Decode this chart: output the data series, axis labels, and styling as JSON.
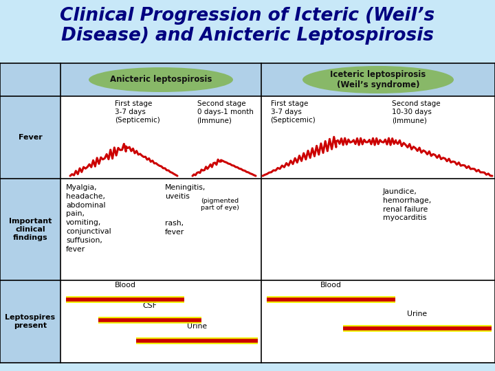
{
  "title_line1": "Clinical Progression of Icteric (Weil’s",
  "title_line2": "Disease) and Anicteric Leptospirosis",
  "title_color": "#000080",
  "title_fontsize": 19,
  "bg_color": "#c8e8f8",
  "white_bg": "#ffffff",
  "left_col_bg": "#b0d0e8",
  "header_bg": "#b0d0e8",
  "header_anicteric_bg": "#88b868",
  "header_icteric_bg": "#88b868",
  "anicteric_header": "Anicteric leptospirosis",
  "icteric_header": "Iceteric leptospirosis\n(Weil’s syndrome)",
  "fever_anicteric_s1": "First stage\n3-7 days\n(Septicemic)",
  "fever_anicteric_s2": "Second stage\n0 days-1 month\n(Immune)",
  "fever_icteric_s1": "First stage\n3-7 days\n(Septicemic)",
  "fever_icteric_s2": "Second stage\n10-30 days\n(Immune)",
  "row_labels": [
    "Fever",
    "Important\nclinical\nfindings",
    "Leptospires\npresent"
  ],
  "findings_anic_col1": "Myalgia,\nheadache,\nabdominal\npain,\nvomiting,\nconjunctival\nsuffusion,\nfever",
  "findings_anic_col2": "Meningitis,\nuveitis",
  "findings_anic_annotation": "(pigmented\npart of eye)",
  "findings_anic_col2b": "rash,\nfever",
  "findings_ic": "Jaundice,\nhemorrhage,\nrenal failure\nmyocarditis",
  "lept_anic": [
    "Blood",
    "CSF",
    "Urine"
  ],
  "lept_ic": [
    "Blood",
    "Urine"
  ],
  "red_color": "#cc0000",
  "line_color": "#000000"
}
